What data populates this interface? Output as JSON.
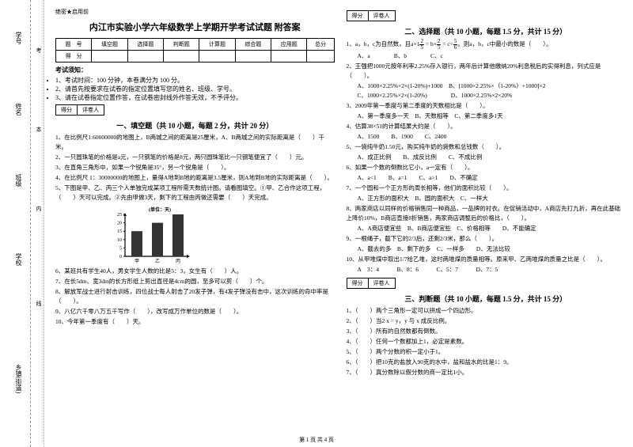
{
  "margin": {
    "l1": "学号",
    "l2": "姓名",
    "l3": "班级",
    "l4": "学校",
    "l5": "乡镇(街道)",
    "v1": "考",
    "v2": "本",
    "v3": "内",
    "v4": "线"
  },
  "secret": "绝密★启用前",
  "title": "内江市实验小学六年级数学上学期开学考试试题 附答案",
  "scoreHdr": [
    "题　号",
    "填空题",
    "选择题",
    "判断题",
    "计算题",
    "综合题",
    "应用题",
    "总分"
  ],
  "scoreRow": "得　分",
  "noticeH": "考试须知：",
  "notices": [
    "1、考试时间：100 分钟，本卷满分为 100 分。",
    "2、请首先按要求在试卷的指定位置填写您的姓名、班级、学号。",
    "3、请在试卷指定位置作答，在试卷密封线外作答无效，不予评分。"
  ],
  "sb": {
    "a": "得分",
    "b": "评卷人"
  },
  "s1": "一、填空题（共 10 小题，每题 2 分，共计 20 分）",
  "q1": [
    "1、在比例尺1:60000000的地图上，B两城之间的距离是25厘米，A、B两城之间的实际距离是（　　）千米。",
    "2、一只圆珠笔的价格是a元，一只钢笔的价格是8元，两只圆珠笔比一只钢笔便宜了（　　）元。",
    "3、在直角三角形中，如果一个锐角是35°，另一个锐角是（　　）。",
    "4、在比例尺 1：30000000的地图上，量得A地到B地的距离是3.5厘米，则A地到B地的实际距离是（　　）。",
    "5、下图是甲、乙、丙三个人单独完成某项工程所需天数统计图。请看图填空。①甲、乙合作这项工程，（　　）天可以完成。②先由甲做3天，剩下的工程由丙做还需要（　　）天完成。"
  ],
  "q1b": [
    "6、某班共有学生40人，男女学生人数的比是5：3，女生有（　　）人。",
    "7、在长5dm、宽3dm的长方形纸上剪出直径是4cm的圆，至多可以剪（　　）个。",
    "8、解放军战士进行射击训练，四位战士每人射击了20发子弹，有4发子弹没有击中，这次训练的命中率是（　　）。",
    "9、八亿六千零八万五千写作（　　），改写成万作单位的数是（　　）。",
    "10、今年第一季度有（　　）天。"
  ],
  "chart": {
    "title": "(单位：天)",
    "yTicks": [
      25,
      20,
      15,
      10,
      5,
      0
    ],
    "bars": [
      {
        "label": "甲",
        "v": 15,
        "c": "#333"
      },
      {
        "label": "乙",
        "v": 20,
        "c": "#333"
      },
      {
        "label": "丙",
        "v": 25,
        "c": "#333"
      }
    ],
    "w": 110,
    "h": 75,
    "barW": 14,
    "gap": 12,
    "ox": 28,
    "oy": 65,
    "maxV": 25,
    "axisC": "#000",
    "fs": 6
  },
  "s2": "二、选择题（共 10 小题，每题 1.5 分，共计 15 分）",
  "q2": [
    {
      "t": "1、a，b，c为自然数，且a×1 = b× = c÷ 。则a，b，c中最小的数是（　　）。",
      "o": "A、a　　　　B、b　　　　C、c"
    },
    {
      "t": "2、王强把1000元按年利率2.25%存入银行，两年后计算他缴纳20%利息税后的实得利息，列式应是（　　）。",
      "o": "A、1000×2.25%×2×(1-20%)+1000　B、[1000×2.25%×（1-20%）+1000]×2\nC、1000×2.25%×2×(1-20%)　　　　D、1000×2.25%×2×20%"
    },
    {
      "t": "3、2009年第一季度与第二季度的天数相比是（　　）。",
      "o": "A、第一季度多一天　B、天数相等　C、第二季度多1天"
    },
    {
      "t": "4、估算38×51的计算结果大约是（　　）。",
      "o": "A、1500　　B、1900　　C、2400"
    },
    {
      "t": "5、一袋纯牛奶1.50元，购买纯牛奶的袋数和总钱数（　　）。",
      "o": "A、成正比例　　B、成反比例　　C、不成比例"
    },
    {
      "t": "6、如果一个数的倒数比它小，a一定有（　　）。",
      "o": "A、a<1　　B、a=1　　C、a>1　　D、不确定"
    },
    {
      "t": "7、一个圆和一个正方形的周长相等，他们的面积比较（　　）。",
      "o": "A、正方形的面积大　B、圆的面积大　C、一样大"
    },
    {
      "t": "8、两家商店以同样的价格销售同一种商品，一品牌的衬衣。在促销活动中，A商店先打九折，再在此基础上降价10%，B商店直接8折销售，两家商店调整后的价格比，（　　）。",
      "o": "A、A商店便宜些　B、B商店便宜些　C、价格相等　　D、不能确定"
    },
    {
      "t": "9、一根绳子，截下它的2/3后，还剩2/3米，那么（　　）。",
      "o": "A、截去的多　B、剩下的多　C、一样多　　D、无法比较"
    },
    {
      "t": "10、从甲堆煤中取出1/7给乙堆，这时两堆煤的质量相等。原来甲、乙两堆煤的质量之比是（　　）。",
      "o": "A　3：4　　　B、8：6　　　C、5：7　　　D、7：5"
    }
  ],
  "s3": "三、判断题（共 10 小题，每题 1.5 分，共计 15 分）",
  "q3": [
    "1、（　　）两个三角形一定可以拼成一个四边形。",
    "2、（　　）当2 x = y，y 与 x 成反比例。",
    "3、（　　）所有的自然数都有倒数。",
    "4、（　　）任何一个数都加上1，必定是素数。",
    "5、（　　）两个分数的积一定小于1。",
    "6、（　　）把10克的盐放入90克的水中，盐和盐水的比是1：9。",
    "7、（　　）真分数除以假分数的商一定比1小。"
  ],
  "fracs": {
    "f1n": "2",
    "f1d": "5",
    "f2n": "2",
    "f2d": "5",
    "f3n": "5",
    "f3d": "6"
  },
  "footer": "第 1 页 共 4 页"
}
